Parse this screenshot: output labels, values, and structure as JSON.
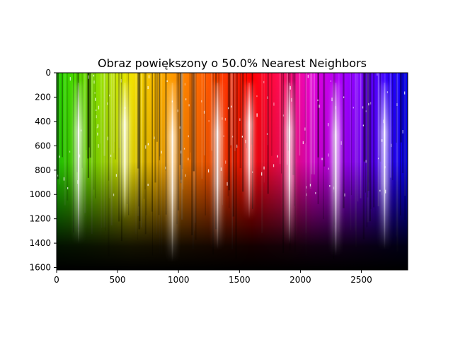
{
  "chart_data": {
    "type": "heatmap",
    "title": "Obraz powiększony o 50.0% Nearest Neighbors",
    "xlabel": "",
    "ylabel": "",
    "xlim": [
      0,
      2880
    ],
    "ylim": [
      1620,
      0
    ],
    "x_ticks": [
      0,
      500,
      1000,
      1500,
      2000,
      2500
    ],
    "y_ticks": [
      0,
      200,
      400,
      600,
      800,
      1000,
      1200,
      1400,
      1600
    ],
    "x_tick_labels": [
      "0",
      "500",
      "1000",
      "1500",
      "2000",
      "2500"
    ],
    "y_tick_labels": [
      "0",
      "200",
      "400",
      "600",
      "800",
      "1000",
      "1200",
      "1400",
      "1600"
    ],
    "grid": false,
    "image_content": {
      "gradient_stops": [
        {
          "x": 0,
          "color": "#1fd400"
        },
        {
          "x": 300,
          "color": "#7fe000"
        },
        {
          "x": 600,
          "color": "#f2e600"
        },
        {
          "x": 950,
          "color": "#ff9a00"
        },
        {
          "x": 1300,
          "color": "#ff4a00"
        },
        {
          "x": 1600,
          "color": "#ff0000"
        },
        {
          "x": 1900,
          "color": "#ff1070"
        },
        {
          "x": 2100,
          "color": "#e400d8"
        },
        {
          "x": 2350,
          "color": "#a800ff"
        },
        {
          "x": 2880,
          "color": "#0000ff"
        }
      ],
      "bright_streaks": [
        {
          "x": 180,
          "length": 1400
        },
        {
          "x": 560,
          "length": 1200
        },
        {
          "x": 950,
          "length": 1550
        },
        {
          "x": 1320,
          "length": 1450
        },
        {
          "x": 1580,
          "length": 1200
        },
        {
          "x": 1910,
          "length": 1400
        },
        {
          "x": 2290,
          "length": 1500
        },
        {
          "x": 2690,
          "length": 1450
        }
      ]
    }
  }
}
